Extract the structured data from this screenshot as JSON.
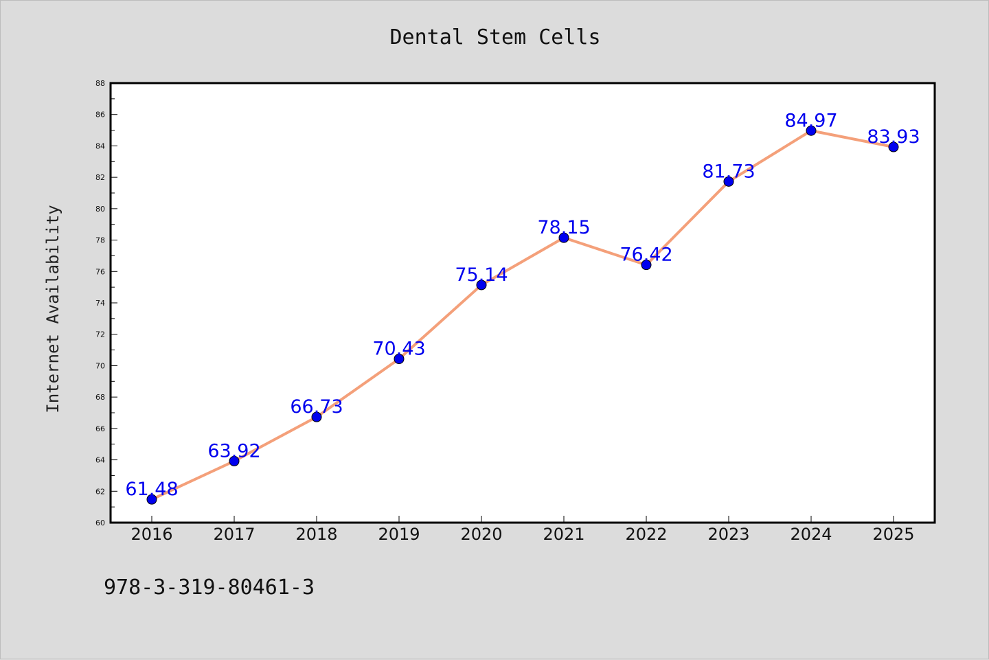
{
  "chart_data": {
    "type": "line",
    "title": "Dental Stem Cells",
    "xlabel": "",
    "ylabel": "Internet Availability",
    "categories": [
      "2016",
      "2017",
      "2018",
      "2019",
      "2020",
      "2021",
      "2022",
      "2023",
      "2024",
      "2025"
    ],
    "values": [
      61.48,
      63.92,
      66.73,
      70.43,
      75.14,
      78.15,
      76.42,
      81.73,
      84.97,
      83.93
    ],
    "data_labels": [
      "61.48",
      "63.92",
      "66.73",
      "70.43",
      "75.14",
      "78.15",
      "76.42",
      "81.73",
      "84.97",
      "83.93"
    ],
    "ylim": [
      60,
      88
    ],
    "yticks": [
      60,
      62,
      64,
      66,
      68,
      70,
      72,
      74,
      76,
      78,
      80,
      82,
      84,
      86,
      88
    ],
    "line_color": "#f4a07a",
    "marker_color": "#0000ee",
    "label_color": "#0000ee",
    "grid": false,
    "legend": "none"
  },
  "footer": {
    "code": "978-3-319-80461-3"
  }
}
